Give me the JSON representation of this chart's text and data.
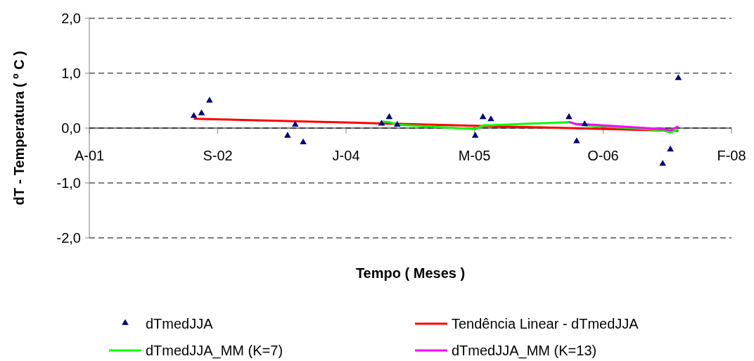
{
  "chart_data": {
    "type": "scatter",
    "xlabel": "Tempo ( Meses )",
    "ylabel": "dT - Temperatura ( º C )",
    "xlim": [
      "2001-04-20",
      "2008-02-24"
    ],
    "xticks": [
      {
        "value": "2001-04-20",
        "label": "A-01"
      },
      {
        "value": "2002-09-02",
        "label": "S-02"
      },
      {
        "value": "2004-01-15",
        "label": "J-04"
      },
      {
        "value": "2005-05-29",
        "label": "M-05"
      },
      {
        "value": "2006-10-12",
        "label": "O-06"
      },
      {
        "value": "2008-02-24",
        "label": "F-08"
      }
    ],
    "ylim": [
      -2,
      2
    ],
    "yticks": [
      {
        "value": -2,
        "label": "-2,0"
      },
      {
        "value": -1,
        "label": "-1,0"
      },
      {
        "value": 0,
        "label": "0,0"
      },
      {
        "value": 1,
        "label": "1,0"
      },
      {
        "value": 2,
        "label": "2,0"
      }
    ],
    "grid": "y",
    "legend": "bottom",
    "series": [
      {
        "name": "dTmedJJA",
        "marker": "triangle",
        "color": "#000080",
        "x": [
          "2002-06",
          "2002-07",
          "2002-08",
          "2003-06",
          "2003-07",
          "2003-08",
          "2004-06",
          "2004-07",
          "2004-08",
          "2005-06",
          "2005-07",
          "2005-08",
          "2006-06",
          "2006-07",
          "2006-08",
          "2007-06",
          "2007-07",
          "2007-08"
        ],
        "values": [
          0.22,
          0.27,
          0.5,
          -0.14,
          0.06,
          -0.26,
          0.08,
          0.2,
          0.06,
          -0.14,
          0.2,
          0.16,
          0.2,
          -0.24,
          0.07,
          -0.65,
          -0.39,
          0.91
        ]
      },
      {
        "name": "Tendência Linear - dTmedJJA",
        "type": "line",
        "color": "#ff0000",
        "x": [
          "2002-06",
          "2007-08"
        ],
        "values": [
          0.17,
          -0.05
        ]
      },
      {
        "name": "dTmedJJA_MM (K=7)",
        "type": "line",
        "color": "#00ff00",
        "x": [
          "2004-06",
          "2004-07",
          "2004-08",
          "2005-06",
          "2005-07",
          "2005-08",
          "2006-06",
          "2006-07",
          "2006-08",
          "2007-06",
          "2007-07",
          "2007-08"
        ],
        "values": [
          0.12,
          0.11,
          0.06,
          -0.02,
          0.05,
          0.05,
          0.11,
          0.07,
          0.05,
          -0.04,
          -0.08,
          -0.02
        ]
      },
      {
        "name": "dTmedJJA_MM (K=13)",
        "type": "line",
        "color": "#ff00ff",
        "x": [
          "2006-06",
          "2006-07",
          "2006-08",
          "2007-06",
          "2007-07",
          "2007-08"
        ],
        "values": [
          0.11,
          0.07,
          0.07,
          -0.02,
          -0.04,
          0.03
        ]
      }
    ]
  }
}
